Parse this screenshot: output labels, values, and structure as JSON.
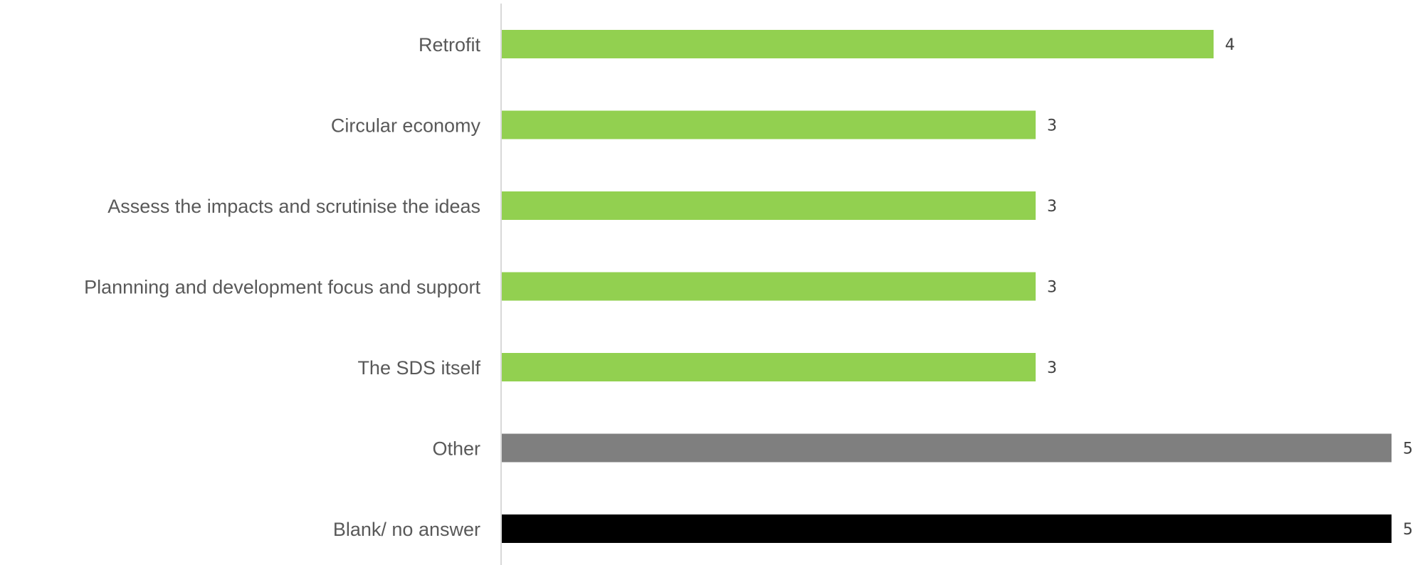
{
  "chart_data": {
    "type": "bar",
    "orientation": "horizontal",
    "categories": [
      "Retrofit",
      "Circular economy",
      "Assess the impacts and scrutinise the ideas",
      "Plannning and development focus and support",
      "The SDS itself",
      "Other",
      "Blank/ no answer"
    ],
    "values": [
      4,
      3,
      3,
      3,
      3,
      5,
      5
    ],
    "data_labels": [
      "4",
      "3",
      "3",
      "3",
      "3",
      "5",
      "5"
    ],
    "bar_colors": [
      "#92d050",
      "#92d050",
      "#92d050",
      "#92d050",
      "#92d050",
      "#7f7f7f",
      "#000000"
    ],
    "xlim": [
      0,
      5
    ],
    "title": "",
    "xlabel": "",
    "ylabel": "",
    "grid": false,
    "legend": "none"
  }
}
